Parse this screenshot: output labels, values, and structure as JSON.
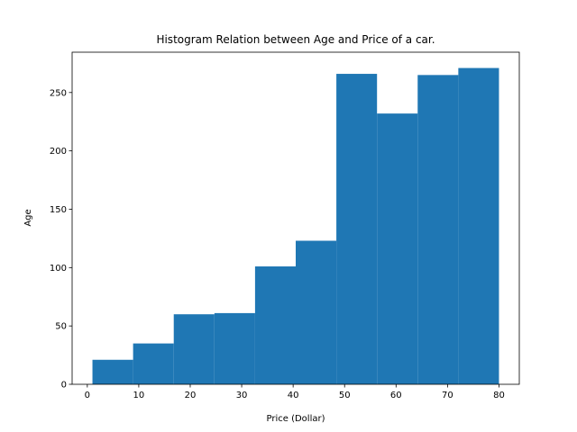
{
  "chart_data": {
    "type": "bar",
    "title": "Histogram Relation between Age and Price of a car.",
    "xlabel": "Price (Dollar)",
    "ylabel": "Age",
    "bin_edges": [
      1,
      8.9,
      16.8,
      24.7,
      32.6,
      40.5,
      48.4,
      56.3,
      64.2,
      72.1,
      80
    ],
    "values": [
      21,
      35,
      60,
      61,
      101,
      123,
      266,
      232,
      265,
      271
    ],
    "xlim": [
      -2.95,
      83.95
    ],
    "ylim": [
      0,
      284.55
    ],
    "xticks": [
      0,
      10,
      20,
      30,
      40,
      50,
      60,
      70,
      80
    ],
    "yticks": [
      0,
      50,
      100,
      150,
      200,
      250
    ],
    "bar_color": "#1f77b4",
    "grid": false
  }
}
